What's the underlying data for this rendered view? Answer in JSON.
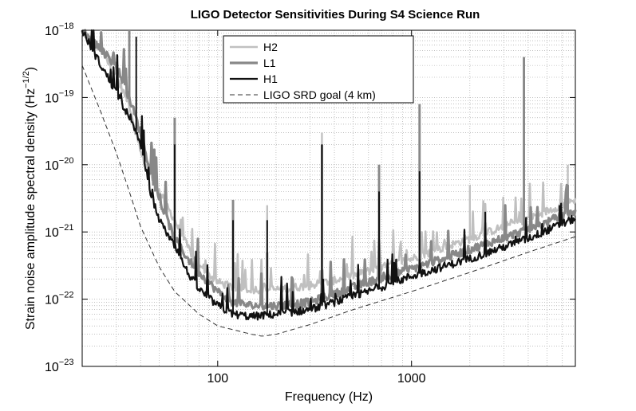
{
  "chart_data": {
    "type": "line",
    "title": "LIGO Detector Sensitivities During S4 Science Run",
    "xlabel": "Frequency (Hz)",
    "ylabel_main": "Strain noise amplitude spectral density (Hz",
    "ylabel_exp": "−1/2",
    "ylabel_close": ")",
    "xscale": "log",
    "yscale": "log",
    "xlim": [
      20,
      7000
    ],
    "ylim": [
      1e-23,
      1e-18
    ],
    "grid": true,
    "legend_position": "top-center",
    "x_ticks": [
      {
        "value": 100,
        "label": "100"
      },
      {
        "value": 1000,
        "label": "1000"
      }
    ],
    "y_ticks": [
      {
        "value": 1e-23,
        "base": "10",
        "exp": "−23"
      },
      {
        "value": 1e-22,
        "base": "10",
        "exp": "−22"
      },
      {
        "value": 1e-21,
        "base": "10",
        "exp": "−21"
      },
      {
        "value": 1e-20,
        "base": "10",
        "exp": "−20"
      },
      {
        "value": 1e-19,
        "base": "10",
        "exp": "−19"
      },
      {
        "value": 1e-18,
        "base": "10",
        "exp": "−18"
      }
    ],
    "series": [
      {
        "name": "H2",
        "color": "#c0c0c0",
        "style": "solid",
        "base": [
          [
            20,
            1e-18
          ],
          [
            25,
            5e-19
          ],
          [
            30,
            2e-19
          ],
          [
            35,
            8e-20
          ],
          [
            40,
            1.5e-20
          ],
          [
            45,
            7e-21
          ],
          [
            50,
            4e-21
          ],
          [
            60,
            1.5e-21
          ],
          [
            70,
            6e-22
          ],
          [
            80,
            3e-22
          ],
          [
            100,
            1.8e-22
          ],
          [
            120,
            1.5e-22
          ],
          [
            150,
            1.4e-22
          ],
          [
            200,
            1.4e-22
          ],
          [
            300,
            1.6e-22
          ],
          [
            400,
            1.9e-22
          ],
          [
            600,
            2.6e-22
          ],
          [
            1000,
            4e-22
          ],
          [
            2000,
            8e-22
          ],
          [
            4000,
            1.6e-21
          ],
          [
            7000,
            3e-21
          ]
        ],
        "spikes": [
          [
            25,
            1e-18
          ],
          [
            60,
            6e-21
          ],
          [
            120,
            2e-21
          ],
          [
            180,
            2.5e-21
          ],
          [
            345,
            3e-20
          ],
          [
            680,
            4e-21
          ],
          [
            1100,
            1e-20
          ],
          [
            2000,
            5e-21
          ],
          [
            6400,
            1e-20
          ]
        ]
      },
      {
        "name": "L1",
        "color": "#888888",
        "style": "solid",
        "base": [
          [
            20,
            1e-18
          ],
          [
            30,
            3e-19
          ],
          [
            35,
            1e-19
          ],
          [
            40,
            3e-20
          ],
          [
            45,
            8e-21
          ],
          [
            50,
            3e-21
          ],
          [
            55,
            1.5e-21
          ],
          [
            60,
            8e-22
          ],
          [
            70,
            4e-22
          ],
          [
            80,
            2.5e-22
          ],
          [
            100,
            1.3e-22
          ],
          [
            120,
            9e-23
          ],
          [
            150,
            8e-23
          ],
          [
            200,
            8e-23
          ],
          [
            300,
            9e-23
          ],
          [
            400,
            1.2e-22
          ],
          [
            600,
            1.8e-22
          ],
          [
            1000,
            2.8e-22
          ],
          [
            2000,
            5.5e-22
          ],
          [
            4000,
            1.1e-21
          ],
          [
            7000,
            2e-21
          ]
        ],
        "spikes": [
          [
            35,
            1e-18
          ],
          [
            60,
            5e-20
          ],
          [
            120,
            3e-21
          ],
          [
            180,
            5e-22
          ],
          [
            345,
            2e-20
          ],
          [
            680,
            1e-20
          ],
          [
            1100,
            8e-20
          ],
          [
            3800,
            4e-19
          ],
          [
            6400,
            5e-21
          ]
        ]
      },
      {
        "name": "H1",
        "color": "#111111",
        "style": "solid",
        "base": [
          [
            20,
            1e-18
          ],
          [
            25,
            3e-19
          ],
          [
            30,
            1.2e-19
          ],
          [
            35,
            5e-20
          ],
          [
            40,
            2e-20
          ],
          [
            45,
            4e-21
          ],
          [
            50,
            1.5e-21
          ],
          [
            55,
            9e-22
          ],
          [
            60,
            6e-22
          ],
          [
            70,
            2.5e-22
          ],
          [
            80,
            1.4e-22
          ],
          [
            100,
            8e-23
          ],
          [
            120,
            6e-23
          ],
          [
            150,
            5.5e-23
          ],
          [
            200,
            6e-23
          ],
          [
            300,
            7e-23
          ],
          [
            400,
            9e-23
          ],
          [
            600,
            1.3e-22
          ],
          [
            1000,
            2.2e-22
          ],
          [
            2000,
            4e-22
          ],
          [
            4000,
            8e-22
          ],
          [
            7000,
            1.6e-21
          ]
        ],
        "spikes": [
          [
            38,
            8e-19
          ],
          [
            60,
            2e-20
          ],
          [
            120,
            1.5e-21
          ],
          [
            180,
            1.5e-21
          ],
          [
            345,
            2e-20
          ],
          [
            680,
            4e-21
          ],
          [
            1100,
            8e-21
          ],
          [
            2400,
            2e-21
          ],
          [
            5800,
            2.5e-21
          ]
        ]
      },
      {
        "name": "LIGO SRD goal (4 km)",
        "color": "#333333",
        "style": "dashed",
        "base": [
          [
            20,
            3e-19
          ],
          [
            25,
            6e-20
          ],
          [
            30,
            1.5e-20
          ],
          [
            35,
            4e-21
          ],
          [
            40,
            1.2e-21
          ],
          [
            50,
            3e-22
          ],
          [
            60,
            1.3e-22
          ],
          [
            80,
            6e-23
          ],
          [
            100,
            4e-23
          ],
          [
            150,
            3e-23
          ],
          [
            170,
            2.8e-23
          ],
          [
            200,
            3e-23
          ],
          [
            300,
            4.2e-23
          ],
          [
            500,
            7e-23
          ],
          [
            1000,
            1.3e-22
          ],
          [
            2000,
            2.5e-22
          ],
          [
            4000,
            5e-22
          ],
          [
            7000,
            8.5e-22
          ]
        ],
        "spikes": []
      }
    ]
  }
}
